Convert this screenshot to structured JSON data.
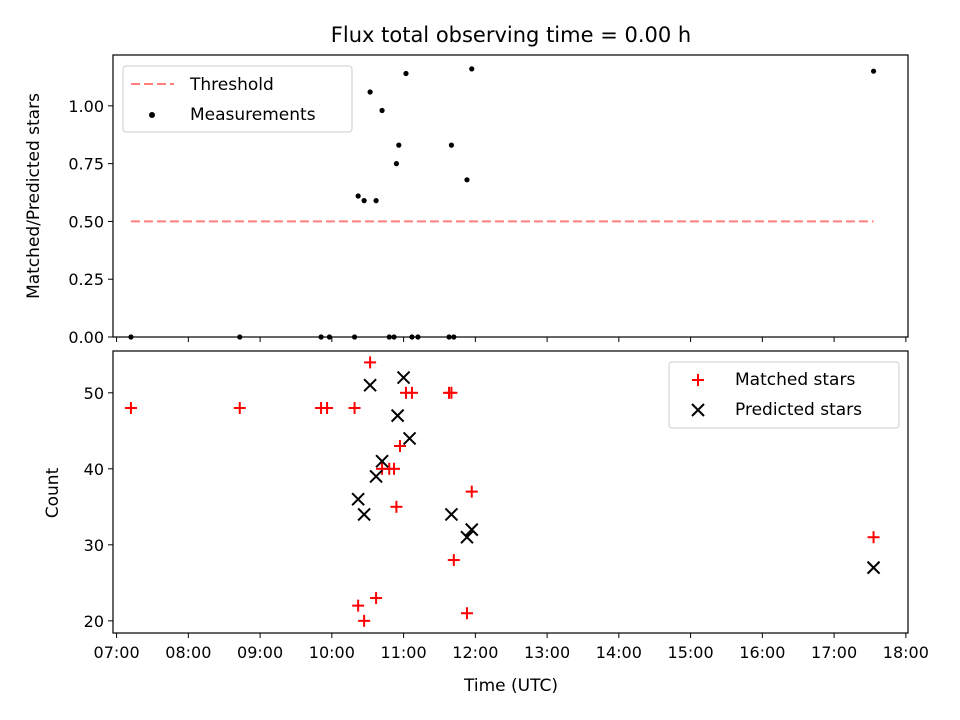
{
  "chart_data": [
    {
      "type": "scatter",
      "title": "Flux total observing time = 0.00 h",
      "xlabel": "",
      "ylabel": "Matched/Predicted stars",
      "ylim": [
        0,
        1.22
      ],
      "yticks": [
        0,
        0.25,
        0.5,
        0.75,
        1.0
      ],
      "ytick_labels": [
        "0.00",
        "0.25",
        "0.50",
        "0.75",
        "1.00"
      ],
      "xlim_hours": [
        6.95,
        18.03
      ],
      "legend_position": "top-left",
      "threshold": {
        "name": "Threshold",
        "y": 0.5,
        "x_start": "07:12",
        "x_end": "17:33",
        "color": "#ff7f7f"
      },
      "series": [
        {
          "name": "Measurements",
          "color": "#000000",
          "x": [
            "07:12",
            "08:43",
            "09:51",
            "09:58",
            "10:19",
            "10:22",
            "10:27",
            "10:32",
            "10:37",
            "10:42",
            "10:48",
            "10:52",
            "10:54",
            "10:56",
            "11:02",
            "11:07",
            "11:12",
            "11:38",
            "11:40",
            "11:42",
            "11:53",
            "11:57",
            "17:33"
          ],
          "y": [
            0.0,
            0.0,
            0.0,
            0.0,
            0.0,
            0.61,
            0.59,
            1.06,
            0.59,
            0.98,
            0.0,
            0.0,
            0.75,
            0.83,
            1.14,
            0.0,
            0.0,
            0.0,
            0.83,
            0.0,
            0.68,
            1.16,
            1.15
          ]
        }
      ]
    },
    {
      "type": "scatter",
      "title": "",
      "xlabel": "Time (UTC)",
      "ylabel": "Count",
      "ylim": [
        18.4,
        55.5
      ],
      "yticks": [
        20,
        30,
        40,
        50
      ],
      "ytick_labels": [
        "20",
        "30",
        "40",
        "50"
      ],
      "xlim_hours": [
        6.95,
        18.03
      ],
      "xtick_labels": [
        "07:00",
        "08:00",
        "09:00",
        "10:00",
        "11:00",
        "12:00",
        "13:00",
        "14:00",
        "15:00",
        "16:00",
        "17:00",
        "18:00"
      ],
      "legend_position": "top-right",
      "series": [
        {
          "name": "Matched stars",
          "color": "#ff0000",
          "marker": "plus",
          "x": [
            "07:12",
            "08:43",
            "09:51",
            "09:56",
            "10:19",
            "10:22",
            "10:27",
            "10:32",
            "10:37",
            "10:42",
            "10:48",
            "10:52",
            "10:54",
            "10:57",
            "11:02",
            "11:07",
            "11:38",
            "11:40",
            "11:42",
            "11:53",
            "11:57",
            "17:33"
          ],
          "y": [
            48,
            48,
            48,
            48,
            48,
            22,
            20,
            54,
            23,
            40,
            40,
            40,
            35,
            43,
            50,
            50,
            50,
            50,
            28,
            21,
            37,
            31
          ]
        },
        {
          "name": "Predicted stars",
          "color": "#000000",
          "marker": "x",
          "x": [
            "10:22",
            "10:27",
            "10:32",
            "10:37",
            "10:42",
            "10:55",
            "11:00",
            "11:05",
            "11:40",
            "11:53",
            "11:57",
            "17:33"
          ],
          "y": [
            36,
            34,
            51,
            39,
            41,
            47,
            52,
            44,
            34,
            31,
            32,
            27
          ]
        }
      ]
    }
  ]
}
